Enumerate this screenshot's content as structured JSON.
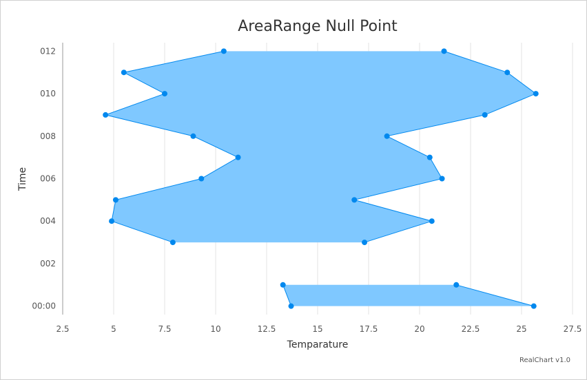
{
  "chart_data": {
    "type": "area",
    "subtype": "arearange",
    "orientation": "inverted",
    "title": "AreaRange Null Point",
    "xlabel": "Time",
    "ylabel": "Temparature",
    "y_axis_ticks": [
      2.5,
      5,
      7.5,
      10,
      12.5,
      15,
      17.5,
      20,
      22.5,
      25,
      27.5
    ],
    "time_axis_labels": [
      {
        "value": 0,
        "label": "00:00"
      },
      {
        "value": 2,
        "label": "002"
      },
      {
        "value": 4,
        "label": "004"
      },
      {
        "value": 6,
        "label": "006"
      },
      {
        "value": 8,
        "label": "008"
      },
      {
        "value": 10,
        "label": "010"
      },
      {
        "value": 12,
        "label": "012"
      }
    ],
    "x_range": [
      -0.4,
      12.4
    ],
    "ylim": [
      2.5,
      27.5
    ],
    "grid": true,
    "color": "#0088ee",
    "fill_color": "#7fc8ff",
    "series": [
      {
        "data": [
          {
            "x": 0,
            "low": 13.7,
            "high": 25.6
          },
          {
            "x": 1,
            "low": 13.3,
            "high": 21.8
          },
          {
            "x": 2,
            "low": null,
            "high": null
          },
          {
            "x": 3,
            "low": 7.9,
            "high": 17.3
          },
          {
            "x": 4,
            "low": 4.9,
            "high": 20.6
          },
          {
            "x": 5,
            "low": 5.1,
            "high": 16.8
          },
          {
            "x": 6,
            "low": 9.3,
            "high": 21.1
          },
          {
            "x": 7,
            "low": 11.1,
            "high": 20.5
          },
          {
            "x": 8,
            "low": 8.9,
            "high": 18.4
          },
          {
            "x": 9,
            "low": 4.6,
            "high": 23.2
          },
          {
            "x": 10,
            "low": 7.5,
            "high": 25.7
          },
          {
            "x": 11,
            "low": 5.5,
            "high": 24.3
          },
          {
            "x": 12,
            "low": 10.4,
            "high": 21.2
          }
        ]
      }
    ]
  },
  "credit": "RealChart v1.0"
}
